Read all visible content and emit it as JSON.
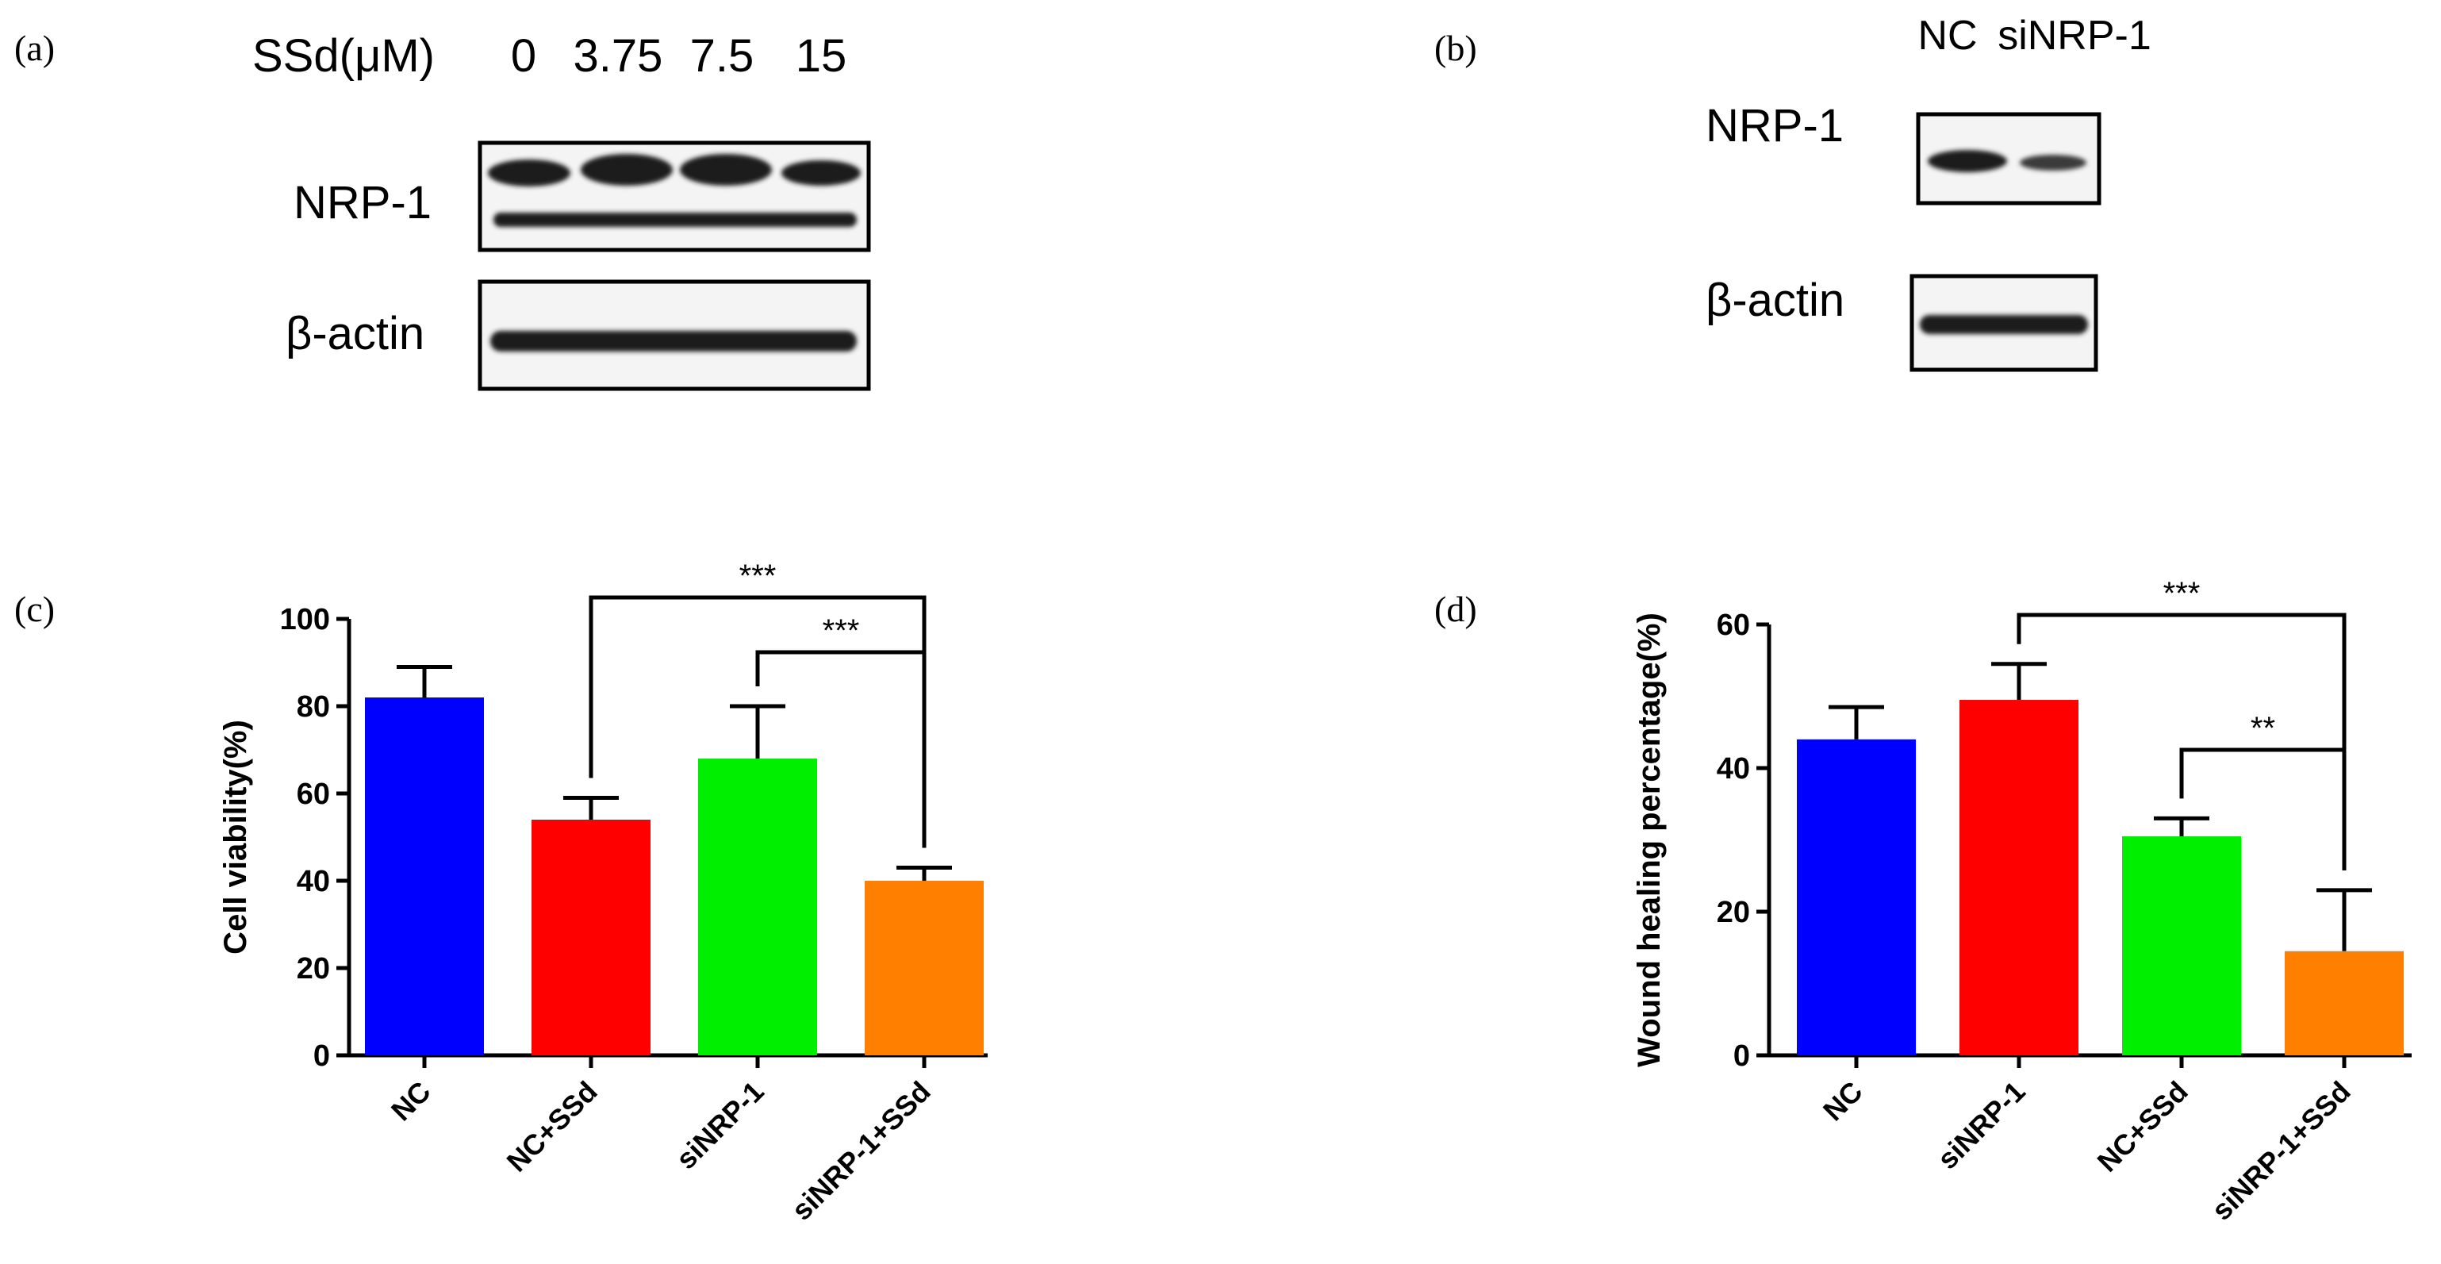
{
  "panels": {
    "a": {
      "label": "(a)",
      "condition_label": "SSd(μM)",
      "concentrations": [
        "0",
        "3.75",
        "7.5",
        "15"
      ],
      "blot_labels": [
        "NRP-1",
        "β-actin"
      ]
    },
    "b": {
      "label": "(b)",
      "lane_labels": [
        "NC",
        "siNRP-1"
      ],
      "blot_labels": [
        "NRP-1",
        "β-actin"
      ]
    },
    "c": {
      "label": "(c)"
    },
    "d": {
      "label": "(d)"
    }
  },
  "colors": {
    "blue": "#0000ff",
    "red": "#ff0000",
    "green": "#00ee00",
    "orange": "#ff8000",
    "axis": "#000000"
  },
  "chart_data": [
    {
      "id": "c",
      "type": "bar",
      "title": "",
      "xlabel": "",
      "ylabel": "Cell viability(%)",
      "ylim": [
        0,
        100
      ],
      "yticks": [
        0,
        20,
        40,
        60,
        80,
        100
      ],
      "categories": [
        "NC",
        "NC+SSd",
        "siNRP-1",
        "siNRP-1+SSd"
      ],
      "values": [
        82,
        54,
        68,
        40
      ],
      "errors": [
        7,
        5,
        12,
        3
      ],
      "bar_colors": [
        "#0000ff",
        "#ff0000",
        "#00ee00",
        "#ff8000"
      ],
      "significance": [
        {
          "from": 1,
          "to": 3,
          "label": "***"
        },
        {
          "from": 2,
          "to": 3,
          "label": "***"
        }
      ]
    },
    {
      "id": "d",
      "type": "bar",
      "title": "",
      "xlabel": "",
      "ylabel": "Wound healing percentage(%)",
      "ylim": [
        0,
        60
      ],
      "yticks": [
        0,
        20,
        40,
        60
      ],
      "categories": [
        "NC",
        "siNRP-1",
        "NC+SSd",
        "siNRP-1+SSd"
      ],
      "values": [
        44,
        49.5,
        30.5,
        14.5
      ],
      "errors": [
        4.5,
        5,
        2.5,
        8.5
      ],
      "bar_colors": [
        "#0000ff",
        "#ff0000",
        "#00ee00",
        "#ff8000"
      ],
      "significance": [
        {
          "from": 1,
          "to": 3,
          "label": "***"
        },
        {
          "from": 2,
          "to": 3,
          "label": "**"
        }
      ]
    }
  ]
}
